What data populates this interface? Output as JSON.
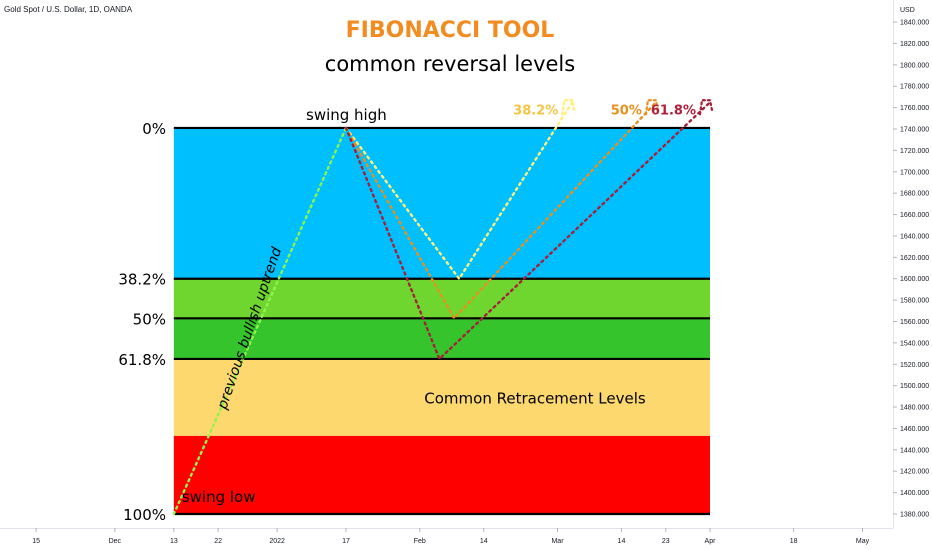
{
  "header": {
    "symbol": "Gold Spot / U.S. Dollar, 1D, OANDA",
    "title": "FIBONACCI TOOL",
    "subtitle": "common reversal levels"
  },
  "colors": {
    "zone_0_382": "#00bfff",
    "zone_382_50": "#6fd62f",
    "zone_50_618": "#36c42c",
    "zone_618_786": "#fcd86e",
    "zone_786_100": "#ff0000",
    "uptrend_line": "#8df54a",
    "retrace_382": "#fff07a",
    "retrace_50": "#e8901e",
    "retrace_618": "#a5203a",
    "label_382": "#f5c542",
    "label_50": "#e8901e",
    "label_618": "#b0203a"
  },
  "chart_data": {
    "type": "line",
    "price_axis": {
      "unit": "USD",
      "range": [
        1370,
        1850
      ],
      "ticks": [
        1380,
        1400,
        1420,
        1440,
        1460,
        1480,
        1500,
        1520,
        1540,
        1560,
        1580,
        1600,
        1620,
        1640,
        1660,
        1680,
        1700,
        1720,
        1740,
        1760,
        1780,
        1800,
        1820,
        1840
      ],
      "tick_labels": [
        "1380.000",
        "1400.000",
        "1420.000",
        "1440.000",
        "1460.000",
        "1480.000",
        "1500.000",
        "1520.000",
        "1540.000",
        "1560.000",
        "1580.000",
        "1600.000",
        "1620.000",
        "1640.000",
        "1660.000",
        "1680.000",
        "1700.000",
        "1720.000",
        "1740.000",
        "1760.000",
        "1780.000",
        "1800.000",
        "1820.000",
        "1840.000"
      ]
    },
    "time_axis": {
      "range": [
        "2021-11-08",
        "2022-05-12"
      ],
      "ticks": [
        {
          "date": "2021-11-15",
          "label": "15"
        },
        {
          "date": "2021-12-01",
          "label": "Dec"
        },
        {
          "date": "2021-12-13",
          "label": "13"
        },
        {
          "date": "2021-12-22",
          "label": "22"
        },
        {
          "date": "2022-01-03",
          "label": "2022"
        },
        {
          "date": "2022-01-17",
          "label": "17"
        },
        {
          "date": "2022-02-01",
          "label": "Feb"
        },
        {
          "date": "2022-02-14",
          "label": "14"
        },
        {
          "date": "2022-03-01",
          "label": "Mar"
        },
        {
          "date": "2022-03-14",
          "label": "14"
        },
        {
          "date": "2022-03-23",
          "label": "23"
        },
        {
          "date": "2022-04-01",
          "label": "Apr"
        },
        {
          "date": "2022-04-18",
          "label": "18"
        },
        {
          "date": "2022-05-02",
          "label": "May"
        }
      ]
    },
    "fib_levels": [
      {
        "label": "0%",
        "price": 1741
      },
      {
        "label": "38.2%",
        "price": 1600
      },
      {
        "label": "50%",
        "price": 1563
      },
      {
        "label": "61.8%",
        "price": 1525
      },
      {
        "label": "",
        "price": 1453
      },
      {
        "label": "100%",
        "price": 1380
      }
    ],
    "zone_left_date": "2021-12-13",
    "zone_right_date": "2022-04-01",
    "swing_low": {
      "date": "2021-12-13",
      "price": 1380,
      "label": "swing low"
    },
    "swing_high": {
      "date": "2022-01-17",
      "price": 1741,
      "label": "swing high"
    },
    "uptrend_label": "previous bullish uptrend",
    "zone_label": "Common Retracement Levels",
    "retracements": [
      {
        "name": "38.2%",
        "points": [
          {
            "date": "2022-01-17",
            "price": 1741
          },
          {
            "date": "2022-02-09",
            "price": 1600
          },
          {
            "date": "2022-03-04",
            "price": 1765
          }
        ]
      },
      {
        "name": "50%",
        "points": [
          {
            "date": "2022-01-17",
            "price": 1741
          },
          {
            "date": "2022-02-08",
            "price": 1563
          },
          {
            "date": "2022-03-21",
            "price": 1765
          }
        ]
      },
      {
        "name": "61.8%",
        "points": [
          {
            "date": "2022-01-17",
            "price": 1741
          },
          {
            "date": "2022-02-05",
            "price": 1525
          },
          {
            "date": "2022-04-01",
            "price": 1765
          }
        ]
      }
    ]
  }
}
